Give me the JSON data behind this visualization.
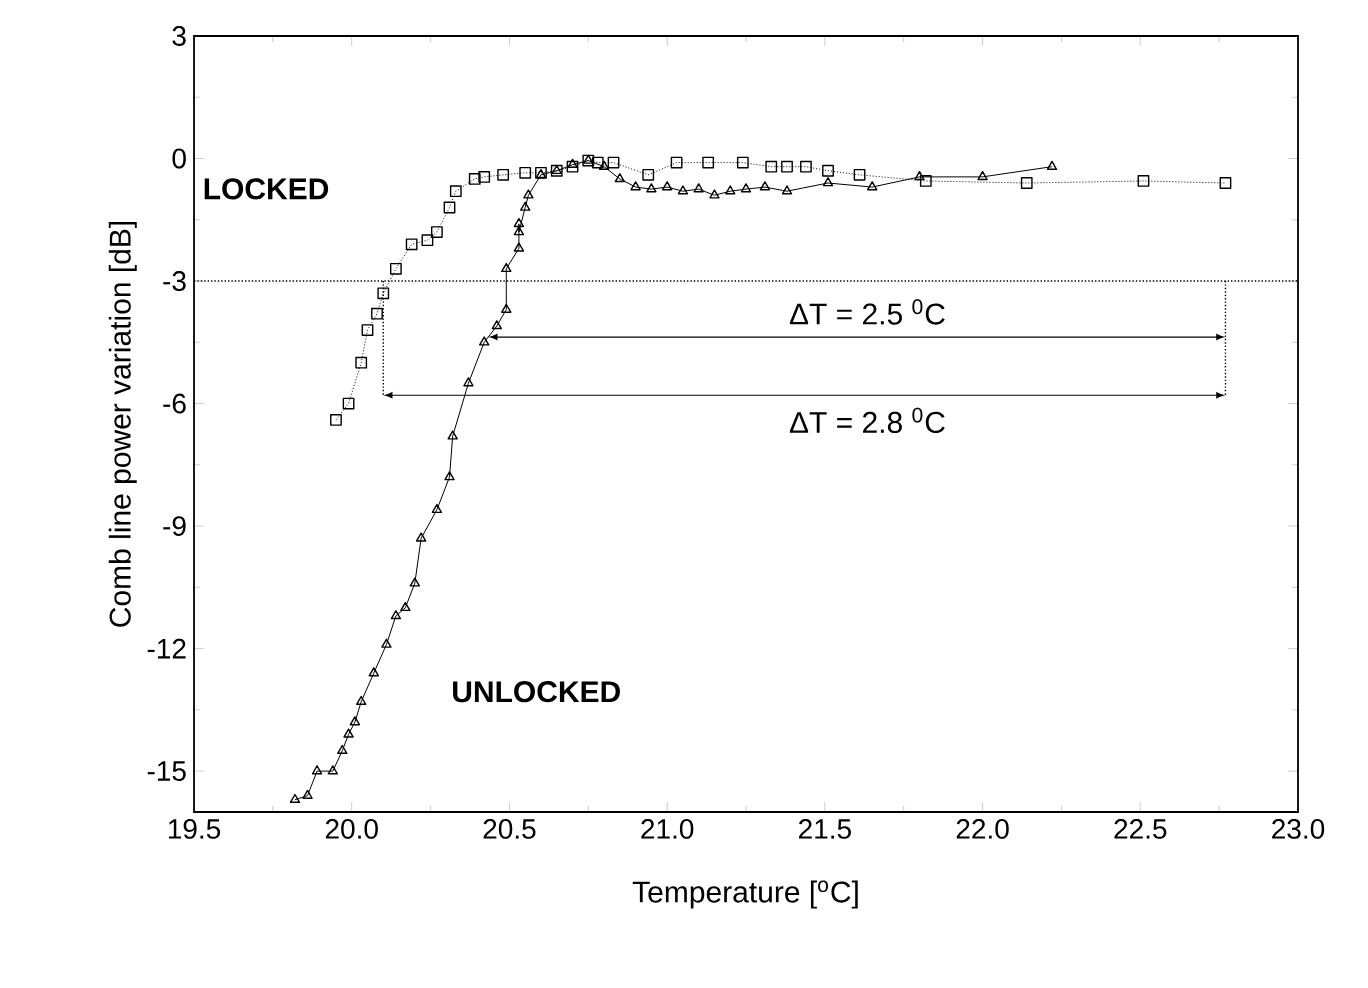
{
  "chart_data": {
    "type": "line",
    "xlabel": "Temperature [$^{o}$C]",
    "ylabel": "Comb line power variation [dB]",
    "xlim": [
      19.5,
      23.0
    ],
    "xticks": [
      {
        "value": 19.5,
        "label": "19.5"
      },
      {
        "value": 20.0,
        "label": "20.0"
      },
      {
        "value": 20.5,
        "label": "20.5"
      },
      {
        "value": 21.0,
        "label": "21.0"
      },
      {
        "value": 21.5,
        "label": "21.5"
      },
      {
        "value": 22.0,
        "label": "22.0"
      },
      {
        "value": 22.5,
        "label": "22.5"
      },
      {
        "value": 23.0,
        "label": "23.0"
      }
    ],
    "ylim": [
      -16,
      3
    ],
    "yticks": [
      -15,
      -12,
      -9,
      -6,
      -3,
      0,
      3
    ],
    "grid": false,
    "series": [
      {
        "color": "#000000",
        "marker": "square",
        "line_style": "dotted",
        "x": [
          19.95,
          19.99,
          20.03,
          20.05,
          20.08,
          20.1,
          20.14,
          20.19,
          20.24,
          20.27,
          20.31,
          20.33,
          20.39,
          20.42,
          20.48,
          20.55,
          20.6,
          20.65,
          20.7,
          20.75,
          20.78,
          20.83,
          20.94,
          21.03,
          21.13,
          21.24,
          21.33,
          21.38,
          21.44,
          21.51,
          21.61,
          21.82,
          22.14,
          22.51,
          22.77
        ],
        "values": [
          -6.4,
          -6.0,
          -5.0,
          -4.2,
          -3.8,
          -3.3,
          -2.7,
          -2.1,
          -2.0,
          -1.8,
          -1.2,
          -0.8,
          -0.5,
          -0.45,
          -0.4,
          -0.35,
          -0.35,
          -0.3,
          -0.2,
          -0.05,
          -0.1,
          -0.1,
          -0.4,
          -0.1,
          -0.1,
          -0.1,
          -0.2,
          -0.2,
          -0.2,
          -0.3,
          -0.4,
          -0.55,
          -0.6,
          -0.55,
          -0.6
        ]
      },
      {
        "color": "#000000",
        "marker": "triangle",
        "line_style": "solid",
        "x": [
          19.82,
          19.86,
          19.89,
          19.94,
          19.97,
          19.99,
          20.01,
          20.03,
          20.07,
          20.11,
          20.14,
          20.17,
          20.2,
          20.22,
          20.27,
          20.31,
          20.32,
          20.37,
          20.42,
          20.46,
          20.49,
          20.49,
          20.53,
          20.53,
          20.53,
          20.55,
          20.56,
          20.6,
          20.65,
          20.7,
          20.75,
          20.8,
          20.85,
          20.9,
          20.95,
          21.0,
          21.05,
          21.1,
          21.15,
          21.2,
          21.25,
          21.31,
          21.38,
          21.51,
          21.65,
          21.8,
          22.0,
          22.22
        ],
        "values": [
          -15.7,
          -15.6,
          -15.0,
          -15.0,
          -14.5,
          -14.1,
          -13.8,
          -13.3,
          -12.6,
          -11.9,
          -11.2,
          -11.0,
          -10.4,
          -9.3,
          -8.6,
          -7.8,
          -6.8,
          -5.5,
          -4.5,
          -4.1,
          -3.7,
          -2.7,
          -2.2,
          -1.6,
          -1.8,
          -1.2,
          -0.9,
          -0.4,
          -0.3,
          -0.15,
          -0.05,
          -0.2,
          -0.5,
          -0.7,
          -0.75,
          -0.7,
          -0.8,
          -0.75,
          -0.9,
          -0.8,
          -0.75,
          -0.7,
          -0.8,
          -0.6,
          -0.7,
          -0.45,
          -0.45,
          -0.2
        ]
      }
    ],
    "ref_lines": [
      {
        "axis": "y",
        "value": -3,
        "line_style": "dotted"
      },
      {
        "axis": "x",
        "value": 20.1,
        "line_style": "dotted"
      },
      {
        "axis": "x",
        "value": 22.77,
        "line_style": "dotted"
      }
    ],
    "annotations": [
      "LOCKED",
      "UNLOCKED",
      "ΔT = 2.5 $^{0}$C",
      "ΔT = 2.8 $^{0}$C"
    ]
  }
}
